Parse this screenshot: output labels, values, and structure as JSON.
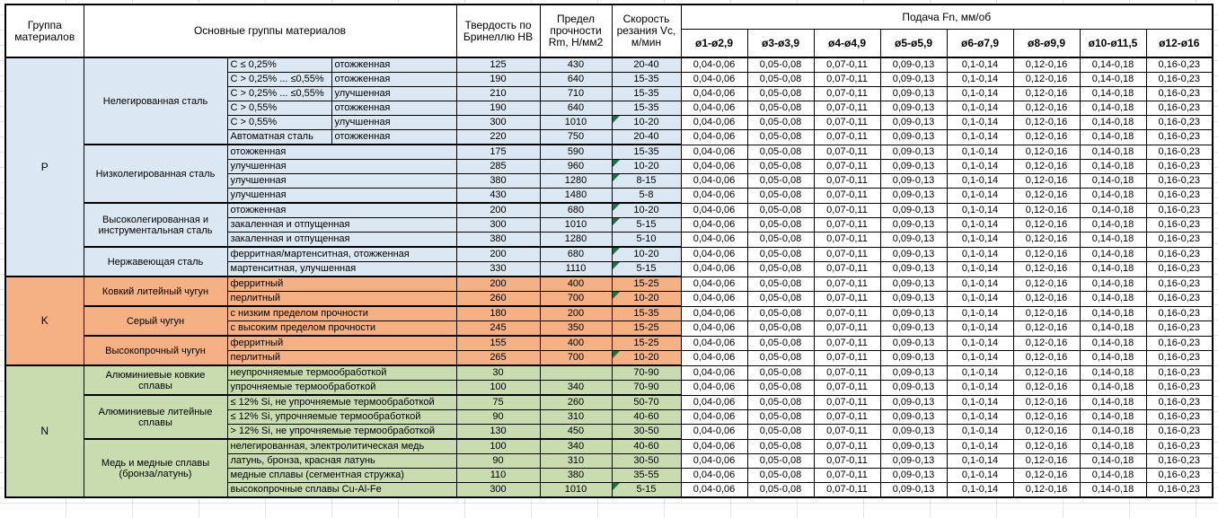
{
  "header": {
    "group": "Группа материалов",
    "main_groups": "Основные группы материалов",
    "hardness": "Твердость по Бринеллю HB",
    "strength": "Предел прочности Rm, Н/мм2",
    "speed": "Скорость резания Vc, м/мин",
    "feed_title": "Подача Fn, мм/об"
  },
  "feed": {
    "headers": [
      "ø1-ø2,9",
      "ø3-ø3,9",
      "ø4-ø4,9",
      "ø5-ø5,9",
      "ø6-ø7,9",
      "ø8-ø9,9",
      "ø10-ø11,5",
      "ø12-ø16"
    ],
    "values": [
      "0,04-0,06",
      "0,05-0,08",
      "0,07-0,11",
      "0,09-0,13",
      "0,1-0,14",
      "0,12-0,16",
      "0,14-0,18",
      "0,16-0,23"
    ]
  },
  "colors": {
    "group_P": "#dbe8f4",
    "group_K": "#f5b183",
    "group_N": "#c8dcb0",
    "marker": "#1e7145",
    "border": "#000000"
  },
  "groups": [
    {
      "code": "P",
      "color": "#dbe8f4",
      "subgroups": [
        {
          "name": "Нелегированная сталь",
          "rows": [
            {
              "spec": "C ≤ 0,25%",
              "state": "отожженная",
              "hb": "125",
              "rm": "430",
              "vc": "20-40"
            },
            {
              "spec": "C > 0,25% ... ≤0,55%",
              "state": "отожженная",
              "hb": "190",
              "rm": "640",
              "vc": "15-35"
            },
            {
              "spec": "C > 0,25% ... ≤0,55%",
              "state": "улучшенная",
              "hb": "210",
              "rm": "710",
              "vc": "15-35"
            },
            {
              "spec": "C > 0,55%",
              "state": "отожженная",
              "hb": "190",
              "rm": "640",
              "vc": "15-35"
            },
            {
              "spec": "C > 0,55%",
              "state": "улучшенная",
              "hb": "300",
              "rm": "1010",
              "vc": "10-20",
              "marker": true
            },
            {
              "spec": "Автоматная сталь",
              "state": "отожженная",
              "hb": "220",
              "rm": "750",
              "vc": "20-40"
            }
          ]
        },
        {
          "name": "Низколегированная сталь",
          "rows": [
            {
              "spec": "отожженная",
              "hb": "175",
              "rm": "590",
              "vc": "15-35"
            },
            {
              "spec": "улучшенная",
              "hb": "285",
              "rm": "960",
              "vc": "10-20",
              "marker": true
            },
            {
              "spec": "улучшенная",
              "hb": "380",
              "rm": "1280",
              "vc": "8-15",
              "marker": true
            },
            {
              "spec": "улучшенная",
              "hb": "430",
              "rm": "1480",
              "vc": "5-8"
            }
          ]
        },
        {
          "name": "Высоколегированная и инструментальная сталь",
          "rows": [
            {
              "spec": "отожженная",
              "hb": "200",
              "rm": "680",
              "vc": "10-20",
              "marker": true
            },
            {
              "spec": "закаленная и отпущенная",
              "hb": "300",
              "rm": "1010",
              "vc": "5-15",
              "marker": true
            },
            {
              "spec": "закаленная и отпущенная",
              "hb": "380",
              "rm": "1280",
              "vc": "5-10"
            }
          ]
        },
        {
          "name": "Нержавеющая сталь",
          "rows": [
            {
              "spec": "ферритная/мартенситная, отожженная",
              "hb": "200",
              "rm": "680",
              "vc": "10-20",
              "marker": true
            },
            {
              "spec": "мартенситная, улучшенная",
              "hb": "330",
              "rm": "1110",
              "vc": "5-15",
              "marker": true
            }
          ]
        }
      ]
    },
    {
      "code": "K",
      "color": "#f5b183",
      "subgroups": [
        {
          "name": "Ковкий литейный чугун",
          "rows": [
            {
              "spec": "ферритный",
              "hb": "200",
              "rm": "400",
              "vc": "15-25"
            },
            {
              "spec": "перлитный",
              "hb": "260",
              "rm": "700",
              "vc": "10-20",
              "marker": true
            }
          ]
        },
        {
          "name": "Серый чугун",
          "rows": [
            {
              "spec": "с низким пределом прочности",
              "hb": "180",
              "rm": "200",
              "vc": "15-35"
            },
            {
              "spec": "с высоким пределом прочности",
              "hb": "245",
              "rm": "350",
              "vc": "15-25"
            }
          ]
        },
        {
          "name": "Высокопрочный чугун",
          "rows": [
            {
              "spec": "ферритный",
              "hb": "155",
              "rm": "400",
              "vc": "15-25"
            },
            {
              "spec": "перлитный",
              "hb": "265",
              "rm": "700",
              "vc": "10-20",
              "marker": true
            }
          ]
        }
      ]
    },
    {
      "code": "N",
      "color": "#c8dcb0",
      "subgroups": [
        {
          "name": "Алюминиевые ковкие сплавы",
          "rows": [
            {
              "spec": "неупрочняемые термообработкой",
              "hb": "30",
              "rm": "",
              "vc": "70-90"
            },
            {
              "spec": "упрочняемые термообработкой",
              "hb": "100",
              "rm": "340",
              "vc": "70-90"
            }
          ]
        },
        {
          "name": "Алюминиевые литейные сплавы",
          "rows": [
            {
              "spec": "≤ 12% Si, не упрочняемые термообработкой",
              "hb": "75",
              "rm": "260",
              "vc": "50-70"
            },
            {
              "spec": "≤ 12% Si, упрочняемые термообработкой",
              "hb": "90",
              "rm": "310",
              "vc": "40-60"
            },
            {
              "spec": "> 12% Si, не упрочняемые термообработкой",
              "hb": "130",
              "rm": "450",
              "vc": "30-50"
            }
          ]
        },
        {
          "name": "Медь и медные сплавы (бронза/латунь)",
          "rows": [
            {
              "spec": "нелегированная, электролитическая медь",
              "hb": "100",
              "rm": "340",
              "vc": "40-60"
            },
            {
              "spec": "латунь, бронза, красная латунь",
              "hb": "90",
              "rm": "310",
              "vc": "30-50"
            },
            {
              "spec": "медные сплавы (сегментная стружка)",
              "hb": "110",
              "rm": "380",
              "vc": "35-55"
            },
            {
              "spec": "высокопрочные сплавы Cu-Al-Fe",
              "hb": "300",
              "rm": "1010",
              "vc": "5-15",
              "marker": true
            }
          ]
        }
      ]
    }
  ]
}
